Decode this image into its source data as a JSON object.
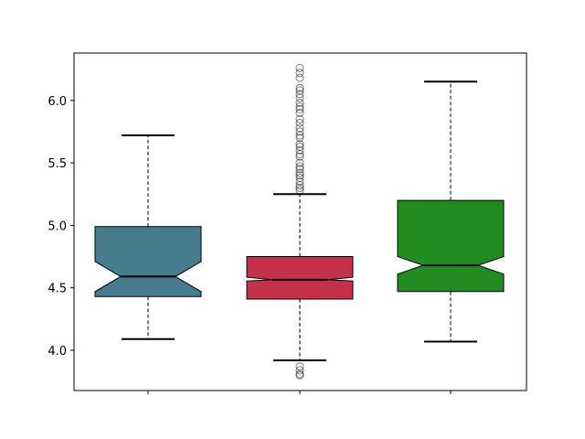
{
  "chart_data": {
    "type": "boxplot",
    "notched": true,
    "title": "",
    "xlabel": "",
    "ylabel": "",
    "ylim": [
      3.678,
      6.379
    ],
    "yticks": [
      "4.0",
      "4.5",
      "5.0",
      "5.5",
      "6.0"
    ],
    "xtick_labels": [
      "",
      "",
      ""
    ],
    "grid": false,
    "boxes": [
      {
        "color": "#457b8c",
        "whisker_low": 4.09,
        "q1": 4.43,
        "notch_low": 4.47,
        "median": 4.59,
        "notch_high": 4.71,
        "q3": 4.99,
        "whisker_high": 5.72,
        "outliers": []
      },
      {
        "color": "#c3314a",
        "whisker_low": 3.92,
        "q1": 4.41,
        "notch_low": 4.555,
        "median": 4.565,
        "notch_high": 4.585,
        "q3": 4.75,
        "whisker_high": 5.25,
        "outliers": [
          6.26,
          6.22,
          6.18,
          6.1,
          6.08,
          6.05,
          6.02,
          5.98,
          5.95,
          5.93,
          5.9,
          5.85,
          5.82,
          5.78,
          5.75,
          5.72,
          5.7,
          5.65,
          5.63,
          5.6,
          5.57,
          5.55,
          5.5,
          5.47,
          5.45,
          5.42,
          5.4,
          5.38,
          5.35,
          5.32,
          5.3,
          5.28,
          3.87,
          3.84,
          3.81,
          3.8
        ]
      },
      {
        "color": "#228b22",
        "whisker_low": 4.07,
        "q1": 4.47,
        "notch_low": 4.61,
        "median": 4.68,
        "notch_high": 4.75,
        "q3": 5.2,
        "whisker_high": 6.15,
        "outliers": []
      }
    ]
  }
}
